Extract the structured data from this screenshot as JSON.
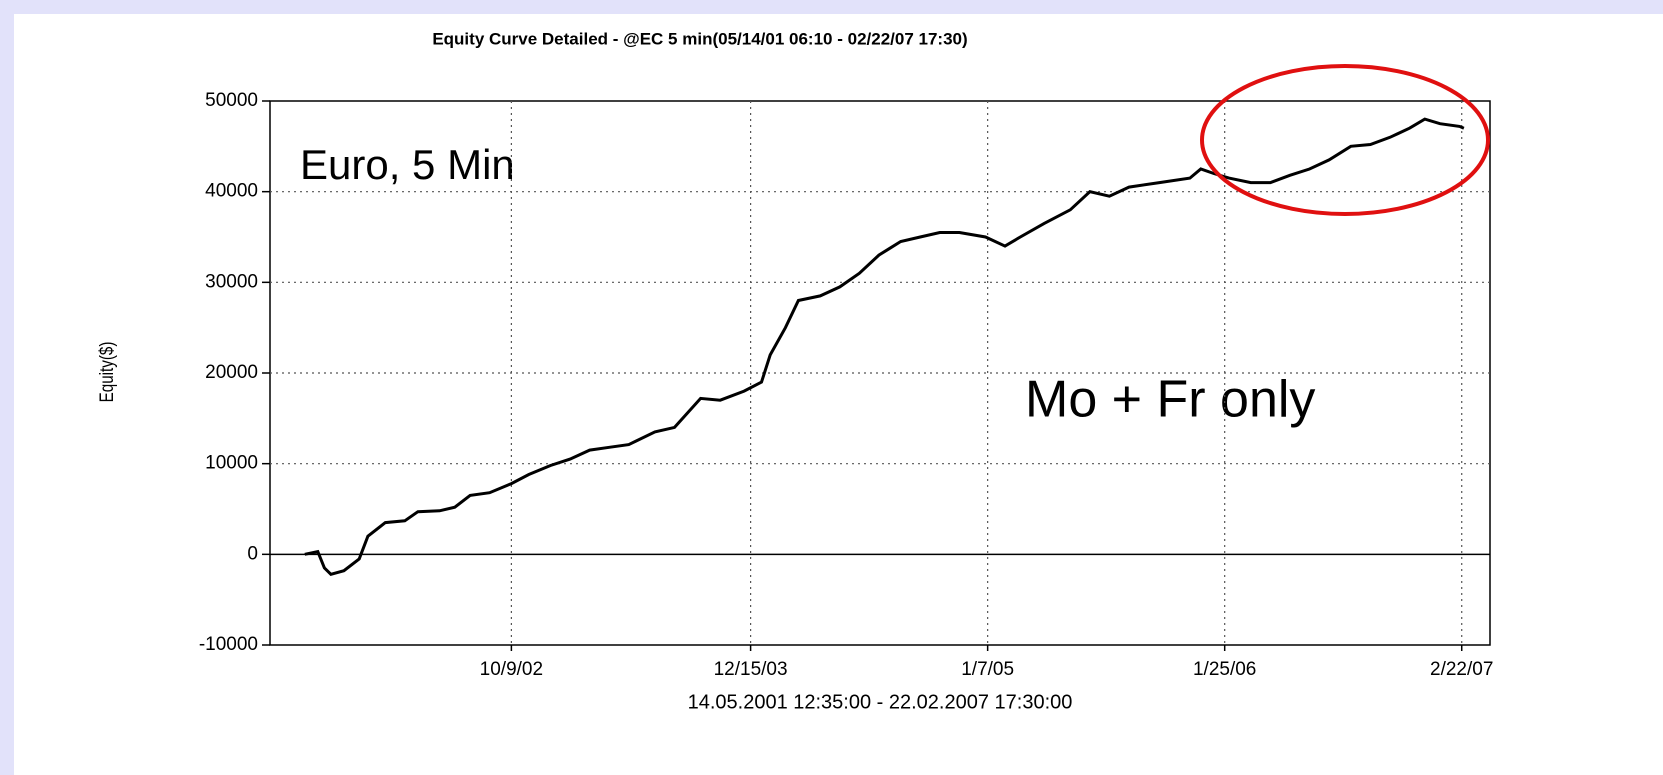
{
  "chart_data": {
    "type": "line",
    "title": "Equity Curve Detailed - @EC 5 min(05/14/01 06:10 - 02/22/07 17:30)",
    "xlabel": "14.05.2001 12:35:00 - 22.02.2007 17:30:00",
    "ylabel": "Equity($)",
    "annotations": [
      "Euro, 5 Min",
      "Mo + Fr only"
    ],
    "x": [
      2001.82,
      2001.88,
      2001.91,
      2001.94,
      2002.0,
      2002.07,
      2002.11,
      2002.19,
      2002.28,
      2002.34,
      2002.44,
      2002.51,
      2002.58,
      2002.67,
      2002.77,
      2002.85,
      2002.95,
      2003.04,
      2003.13,
      2003.22,
      2003.31,
      2003.43,
      2003.52,
      2003.64,
      2003.73,
      2003.84,
      2003.92,
      2003.96,
      2004.03,
      2004.09,
      2004.19,
      2004.28,
      2004.37,
      2004.46,
      2004.56,
      2004.65,
      2004.74,
      2004.83,
      2004.95,
      2005.04,
      2005.11,
      2005.22,
      2005.34,
      2005.43,
      2005.52,
      2005.61,
      2005.75,
      2005.89,
      2005.94,
      2006.0,
      2006.07,
      2006.17,
      2006.26,
      2006.35,
      2006.44,
      2006.53,
      2006.63,
      2006.72,
      2006.81,
      2006.9,
      2006.97,
      2007.04,
      2007.13,
      2007.15
    ],
    "series": [
      {
        "name": "Equity",
        "color": "#000000",
        "values": [
          0,
          300,
          -1500,
          -2200,
          -1800,
          -500,
          2000,
          3500,
          3700,
          4700,
          4800,
          5200,
          6500,
          6800,
          7800,
          8800,
          9800,
          10500,
          11500,
          11800,
          12100,
          13500,
          14000,
          17200,
          17000,
          18000,
          19000,
          22000,
          25000,
          28000,
          28500,
          29500,
          31000,
          33000,
          34500,
          35000,
          35500,
          35500,
          35000,
          34000,
          35000,
          36500,
          38000,
          40000,
          39500,
          40500,
          41000,
          41500,
          42500,
          42000,
          41500,
          41000,
          41000,
          41800,
          42500,
          43500,
          45000,
          45200,
          46000,
          47000,
          48000,
          47500,
          47200,
          47000
        ]
      }
    ],
    "xlim": [
      2001.66,
      2007.27
    ],
    "xticks": [
      {
        "value": 2002.77,
        "label": "10/9/02"
      },
      {
        "value": 2003.87,
        "label": "12/15/03"
      },
      {
        "value": 2004.96,
        "label": "1/7/05"
      },
      {
        "value": 2006.05,
        "label": "1/25/06"
      },
      {
        "value": 2007.14,
        "label": "2/22/07"
      }
    ],
    "ylim": [
      -10000,
      50000
    ],
    "yticks": [
      -10000,
      0,
      10000,
      20000,
      30000,
      40000,
      50000
    ],
    "grid": true
  }
}
